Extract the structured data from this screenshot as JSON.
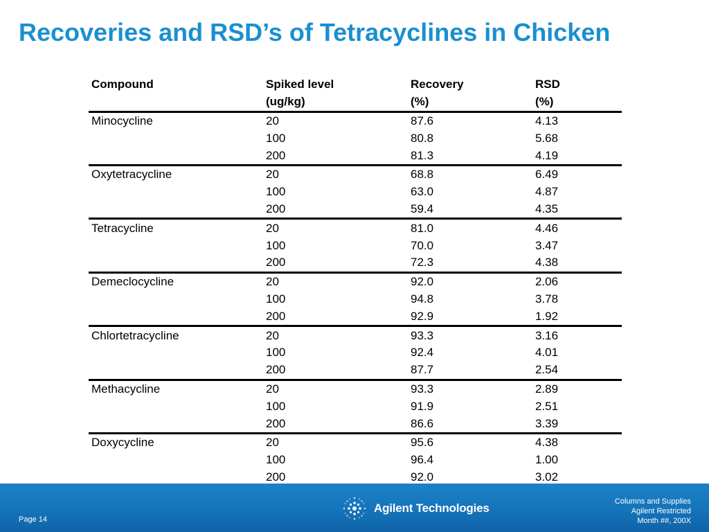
{
  "slide": {
    "title": "Recoveries and RSD’s of Tetracyclines in Chicken"
  },
  "table": {
    "headers": [
      [
        "Compound",
        "Spiked level",
        "Recovery",
        "RSD"
      ],
      [
        "",
        "(ug/kg)",
        "(%)",
        "(%)"
      ]
    ],
    "rows": [
      [
        "Minocycline",
        "20",
        "87.6",
        "4.13"
      ],
      [
        "",
        "100",
        "80.8",
        "5.68"
      ],
      [
        "",
        "200",
        "81.3",
        "4.19"
      ],
      [
        "Oxytetracycline",
        "20",
        "68.8",
        "6.49"
      ],
      [
        "",
        "100",
        "63.0",
        "4.87"
      ],
      [
        "",
        "200",
        "59.4",
        "4.35"
      ],
      [
        "Tetracycline",
        "20",
        "81.0",
        "4.46"
      ],
      [
        "",
        "100",
        "70.0",
        "3.47"
      ],
      [
        "",
        "200",
        "72.3",
        "4.38"
      ],
      [
        "Demeclocycline",
        "20",
        "92.0",
        "2.06"
      ],
      [
        "",
        "100",
        "94.8",
        "3.78"
      ],
      [
        "",
        "200",
        "92.9",
        "1.92"
      ],
      [
        "Chlortetracycline",
        "20",
        "93.3",
        "3.16"
      ],
      [
        "",
        "100",
        "92.4",
        "4.01"
      ],
      [
        "",
        "200",
        "87.7",
        "2.54"
      ],
      [
        "Methacycline",
        "20",
        "93.3",
        "2.89"
      ],
      [
        "",
        "100",
        "91.9",
        "2.51"
      ],
      [
        "",
        "200",
        "86.6",
        "3.39"
      ],
      [
        "Doxycycline",
        "20",
        "95.6",
        "4.38"
      ],
      [
        "",
        "100",
        "96.4",
        "1.00"
      ],
      [
        "",
        "200",
        "92.0",
        "3.02"
      ]
    ]
  },
  "footer": {
    "page": "Page 14",
    "logo_text": "Agilent Technologies",
    "right_lines": [
      "Columns and Supplies",
      "Agilent Restricted",
      "Month ##, 200X"
    ]
  },
  "colors": {
    "title": "#1a8fd0",
    "footer_bg": "#1572b8"
  }
}
